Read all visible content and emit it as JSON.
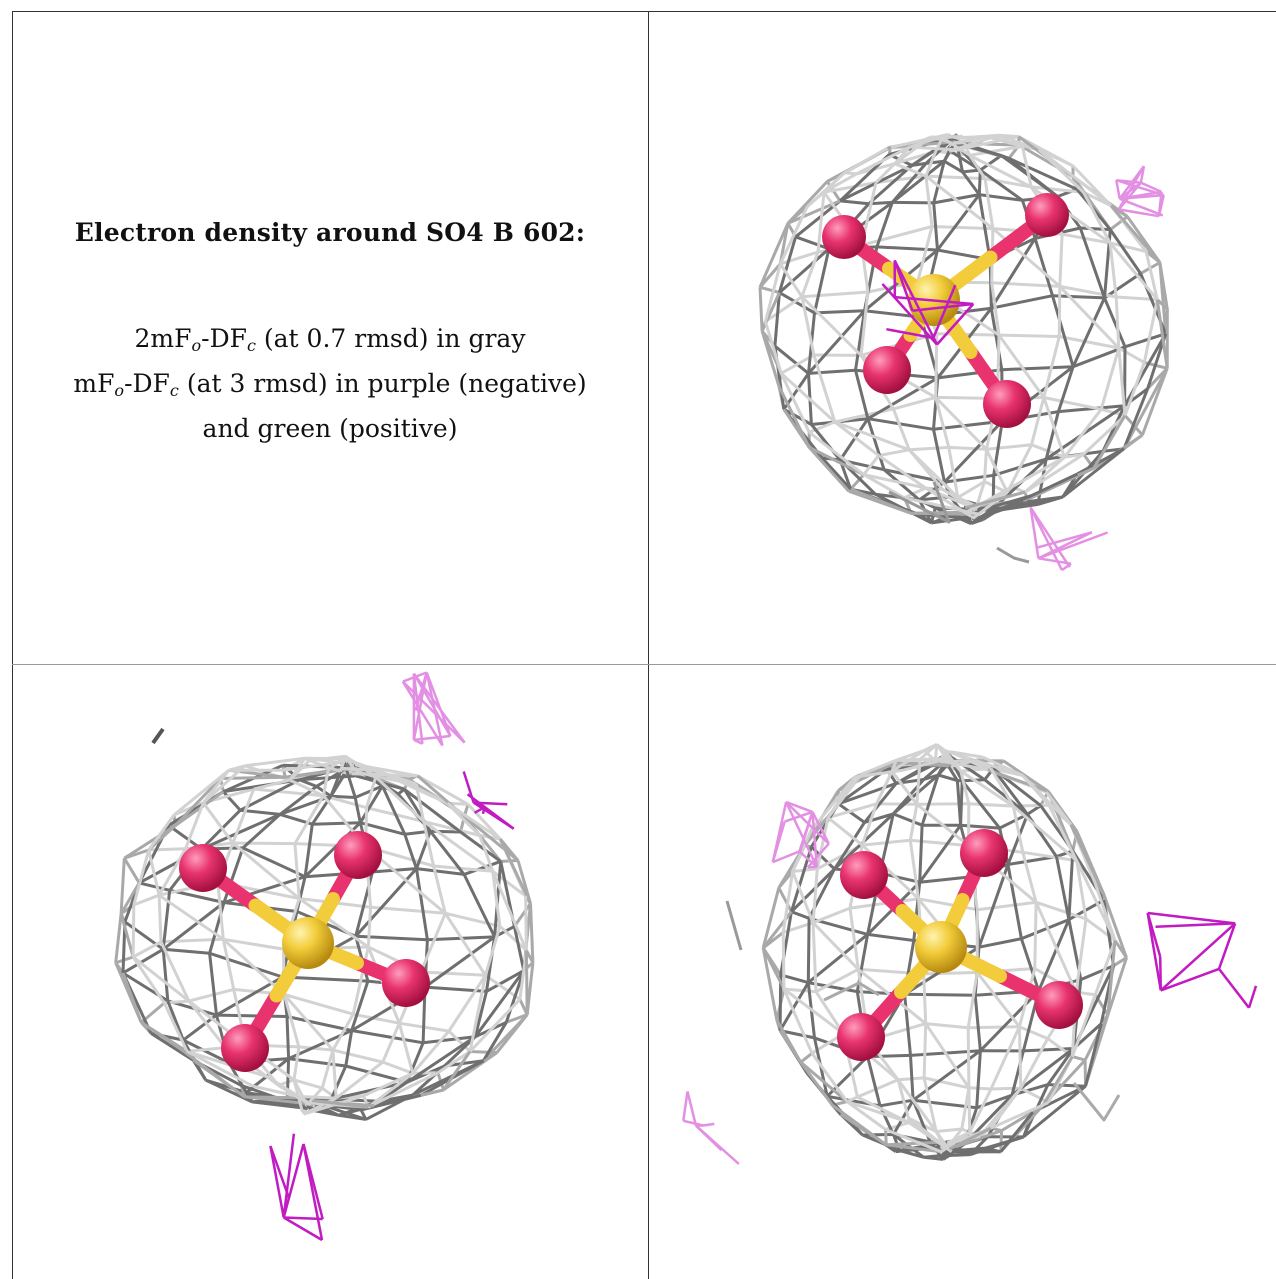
{
  "caption": {
    "title": "Electron density around SO4 B 602:",
    "line1_prefix": "2mF",
    "line1_sub1": "o",
    "line1_mid": "-DF",
    "line1_sub2": "c",
    "line1_suffix": " (at 0.7 rmsd) in gray",
    "line2_prefix": "mF",
    "line2_sub1": "o",
    "line2_mid": "-DF",
    "line2_sub2": "c",
    "line2_suffix": " (at 3 rmsd) in purple (negative)",
    "line3": "and green (positive)"
  },
  "colors": {
    "mesh_gray": "#a9a9a9",
    "mesh_dark": "#6f6f6f",
    "difference_purple": "#c21bc2",
    "difference_light": "#e38fe3",
    "oxygen": "#e8336f",
    "sulfur": "#f2cc3a"
  },
  "panels": [
    {
      "name": "view-1",
      "mesh_color": "gray",
      "difference_color": "purple"
    },
    {
      "name": "view-2",
      "mesh_color": "gray",
      "difference_color": "purple"
    },
    {
      "name": "view-3",
      "mesh_color": "gray",
      "difference_color": "purple"
    }
  ]
}
